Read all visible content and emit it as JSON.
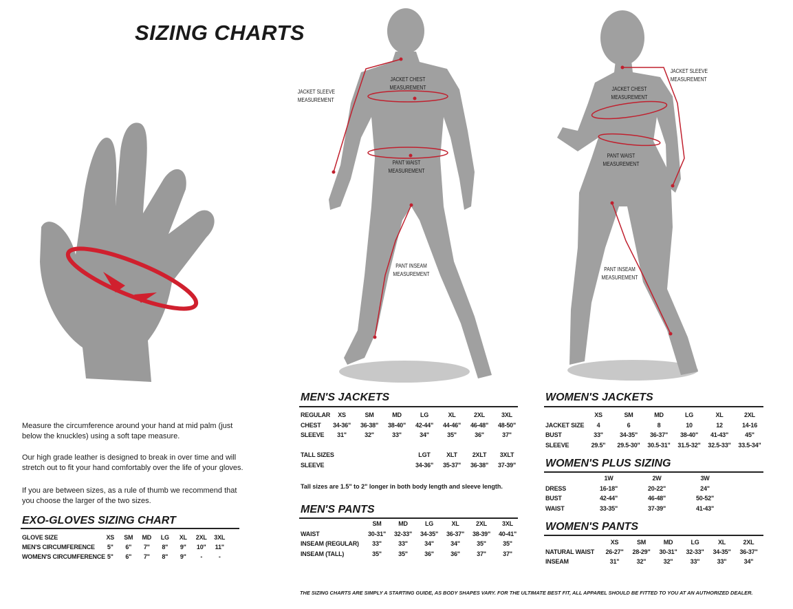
{
  "title": "SIZING CHARTS",
  "figures": {
    "man": {
      "labels": [
        "JACKET SLEEVE\nMEASUREMENT",
        "JACKET CHEST\nMEASUREMENT",
        "PANT WAIST\nMEASUREMENT",
        "PANT INSEAM\nMEASUREMENT"
      ]
    },
    "woman": {
      "labels": [
        "JACKET SLEEVE\nMEASUREMENT",
        "JACKET CHEST\nMEASUREMENT",
        "PANT WAIST\nMEASUREMENT",
        "PANT INSEAM\nMEASUREMENT"
      ]
    }
  },
  "gloves_text": [
    "Measure the circumference around your hand at mid palm (just below the knuckles) using a soft tape measure.",
    "Our high grade leather is designed to break in over time and will stretch out to fit your hand comfortably over the life of your gloves.",
    "If you are between sizes, as a rule of thumb we recommend that you choose the larger of the two sizes."
  ],
  "tables": {
    "gloves": {
      "title": "EXO-GLOVES SIZING CHART",
      "sizes_label": "GLOVE SIZE",
      "sizes": [
        "XS",
        "SM",
        "MD",
        "LG",
        "XL",
        "2XL",
        "3XL"
      ],
      "rows": [
        {
          "label": "MEN'S CIRCUMFERENCE",
          "values": [
            "5\"",
            "6\"",
            "7\"",
            "8\"",
            "9\"",
            "10\"",
            "11\""
          ]
        },
        {
          "label": "WOMEN'S CIRCUMFERENCE",
          "values": [
            "5\"",
            "6\"",
            "7\"",
            "8\"",
            "9\"",
            "-",
            "-"
          ]
        }
      ]
    },
    "mens_jackets": {
      "title": "MEN'S JACKETS",
      "sizes_label": "REGULAR",
      "sizes": [
        "XS",
        "SM",
        "MD",
        "LG",
        "XL",
        "2XL",
        "3XL"
      ],
      "rows": [
        {
          "label": "CHEST",
          "values": [
            "34-36\"",
            "36-38\"",
            "38-40\"",
            "42-44\"",
            "44-46\"",
            "46-48\"",
            "48-50\""
          ]
        },
        {
          "label": "SLEEVE",
          "values": [
            "31\"",
            "32\"",
            "33\"",
            "34\"",
            "35\"",
            "36\"",
            "37\""
          ]
        }
      ]
    },
    "mens_jackets_tall": {
      "sizes_label": "TALL SIZES",
      "sizes": [
        "LGT",
        "XLT",
        "2XLT",
        "3XLT"
      ],
      "rows": [
        {
          "label": "SLEEVE",
          "values": [
            "34-36\"",
            "35-37\"",
            "36-38\"",
            "37-39\""
          ]
        }
      ],
      "note": "Tall sizes are 1.5\" to 2\" longer in both body length and sleeve length."
    },
    "mens_pants": {
      "title": "MEN'S PANTS",
      "sizes": [
        "SM",
        "MD",
        "LG",
        "XL",
        "2XL",
        "3XL"
      ],
      "rows": [
        {
          "label": "WAIST",
          "values": [
            "30-31\"",
            "32-33\"",
            "34-35\"",
            "36-37\"",
            "38-39\"",
            "40-41\""
          ]
        },
        {
          "label": "INSEAM (REGULAR)",
          "values": [
            "33\"",
            "33\"",
            "34\"",
            "34\"",
            "35\"",
            "35\""
          ]
        },
        {
          "label": "INSEAM (TALL)",
          "values": [
            "35\"",
            "35\"",
            "36\"",
            "36\"",
            "37\"",
            "37\""
          ]
        }
      ]
    },
    "womens_jackets": {
      "title": "WOMEN'S JACKETS",
      "sizes": [
        "XS",
        "SM",
        "MD",
        "LG",
        "XL",
        "2XL"
      ],
      "rows": [
        {
          "label": "JACKET SIZE",
          "values": [
            "4",
            "6",
            "8",
            "10",
            "12",
            "14-16"
          ]
        },
        {
          "label": "BUST",
          "values": [
            "33\"",
            "34-35\"",
            "36-37\"",
            "38-40\"",
            "41-43\"",
            "45\""
          ]
        },
        {
          "label": "SLEEVE",
          "values": [
            "29.5\"",
            "29.5-30\"",
            "30.5-31\"",
            "31.5-32\"",
            "32.5-33\"",
            "33.5-34\""
          ]
        }
      ]
    },
    "womens_plus": {
      "title": "WOMEN'S PLUS SIZING",
      "sizes": [
        "1W",
        "2W",
        "3W"
      ],
      "rows": [
        {
          "label": "DRESS",
          "values": [
            "16-18\"",
            "20-22\"",
            "24\""
          ]
        },
        {
          "label": "BUST",
          "values": [
            "42-44\"",
            "46-48\"",
            "50-52\""
          ]
        },
        {
          "label": "WAIST",
          "values": [
            "33-35\"",
            "37-39\"",
            "41-43\""
          ]
        }
      ]
    },
    "womens_pants": {
      "title": "WOMEN'S PANTS",
      "sizes": [
        "XS",
        "SM",
        "MD",
        "LG",
        "XL",
        "2XL"
      ],
      "rows": [
        {
          "label": "NATURAL WAIST",
          "values": [
            "26-27\"",
            "28-29\"",
            "30-31\"",
            "32-33\"",
            "34-35\"",
            "36-37\""
          ]
        },
        {
          "label": "INSEAM",
          "values": [
            "31\"",
            "32\"",
            "32\"",
            "33\"",
            "33\"",
            "34\""
          ]
        }
      ]
    }
  },
  "footer": "THE SIZING CHARTS ARE SIMPLY A STARTING GUIDE, AS BODY SHAPES VARY. FOR THE ULTIMATE BEST FIT, ALL APPAREL SHOULD BE FITTED TO YOU AT AN AUTHORIZED DEALER."
}
